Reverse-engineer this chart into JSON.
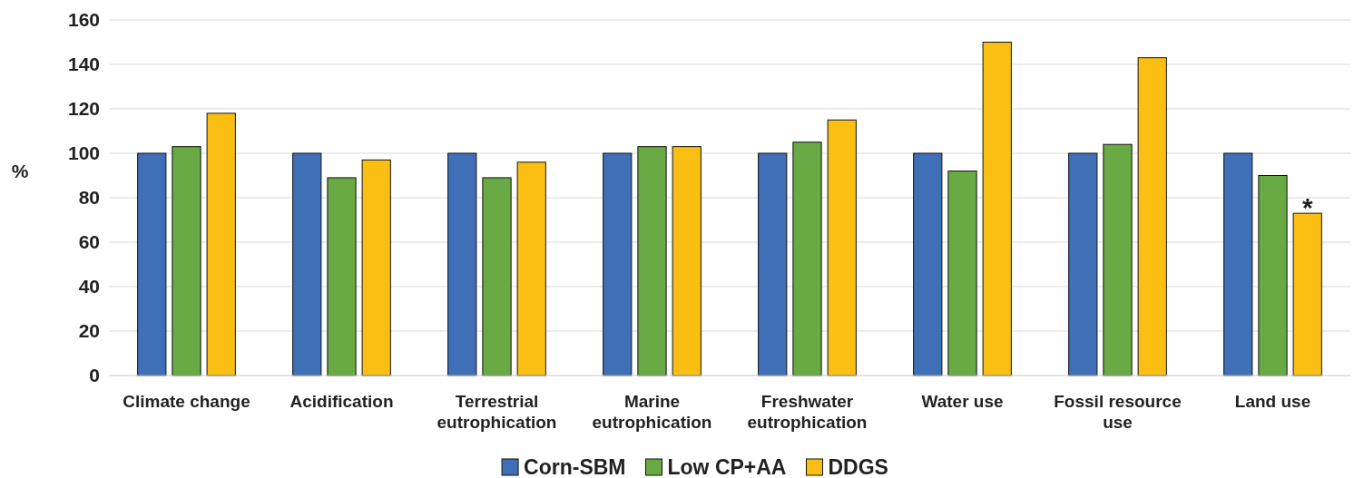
{
  "chart_data": {
    "type": "bar",
    "ylabel": "%",
    "categories": [
      "Climate change",
      "Acidification",
      "Terrestrial eutrophication",
      "Marine eutrophication",
      "Freshwater eutrophication",
      "Water use",
      "Fossil resource use",
      "Land use"
    ],
    "series": [
      {
        "name": "Corn-SBM",
        "color": "#3f6fb6",
        "values": [
          100,
          100,
          100,
          100,
          100,
          100,
          100,
          100
        ]
      },
      {
        "name": "Low CP+AA",
        "color": "#6aaa44",
        "values": [
          103,
          89,
          89,
          103,
          105,
          92,
          104,
          90
        ]
      },
      {
        "name": "DDGS",
        "color": "#fbbf14",
        "values": [
          118,
          97,
          96,
          103,
          115,
          150,
          143,
          73
        ]
      }
    ],
    "ylim": [
      0,
      160
    ],
    "yticks": [
      0,
      20,
      40,
      60,
      80,
      100,
      120,
      140,
      160
    ],
    "grid": "y",
    "legend": "bottom",
    "annotations": [
      "*"
    ]
  }
}
